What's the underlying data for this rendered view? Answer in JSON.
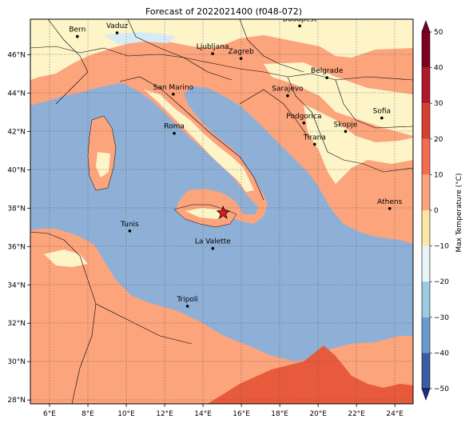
{
  "title": "Forecast of 2022021400 (f048-072)",
  "x_ticks": [
    "6°E",
    "8°E",
    "10°E",
    "12°E",
    "14°E",
    "16°E",
    "18°E",
    "20°E",
    "22°E",
    "24°E"
  ],
  "y_ticks": [
    "46°N",
    "44°N",
    "42°N",
    "40°N",
    "38°N",
    "36°N",
    "34°N",
    "32°N",
    "30°N",
    "28°N"
  ],
  "colorbar": {
    "label": "Max Temperature (°C)",
    "ticks": [
      "50",
      "40",
      "30",
      "20",
      "10",
      "0",
      "−10",
      "−20",
      "−30",
      "−40",
      "−50"
    ],
    "colors": [
      "#7f0020",
      "#b2182b",
      "#d6402e",
      "#f16d4e",
      "#fca47c",
      "#fde7a6",
      "#e8f4f8",
      "#9ecae1",
      "#6a9bd0",
      "#3b5ba5",
      "#1f2a8a"
    ]
  },
  "cities": [
    {
      "name": "Bern",
      "lon": 7.45,
      "lat": 46.95
    },
    {
      "name": "Vaduz",
      "lon": 9.52,
      "lat": 47.14
    },
    {
      "name": "Budapest",
      "lon": 19.04,
      "lat": 47.5
    },
    {
      "name": "Ljubljana",
      "lon": 14.5,
      "lat": 46.05
    },
    {
      "name": "Zagreb",
      "lon": 15.98,
      "lat": 45.8
    },
    {
      "name": "Belgrade",
      "lon": 20.46,
      "lat": 44.8
    },
    {
      "name": "San Marino",
      "lon": 12.45,
      "lat": 43.94
    },
    {
      "name": "Sarajevo",
      "lon": 18.41,
      "lat": 43.86
    },
    {
      "name": "Sofia",
      "lon": 23.32,
      "lat": 42.7
    },
    {
      "name": "Podgorica",
      "lon": 19.26,
      "lat": 42.44
    },
    {
      "name": "Skopje",
      "lon": 21.43,
      "lat": 42.0
    },
    {
      "name": "Roma",
      "lon": 12.5,
      "lat": 41.9
    },
    {
      "name": "Tirana",
      "lon": 19.82,
      "lat": 41.33
    },
    {
      "name": "Athens",
      "lon": 23.73,
      "lat": 37.98
    },
    {
      "name": "Tunis",
      "lon": 10.18,
      "lat": 36.81
    },
    {
      "name": "La Valette",
      "lon": 14.51,
      "lat": 35.9
    },
    {
      "name": "Tripoli",
      "lon": 13.19,
      "lat": 32.89
    }
  ],
  "marker": {
    "lon": 15.05,
    "lat": 37.75,
    "color": "#e31a1c"
  },
  "colors": {
    "sea": "#8fb0d6",
    "land_warm": "#fca47c",
    "land_mild": "#fdf4c8",
    "land_hot": "#f16d4e",
    "hot_core": "#e85a3c",
    "light_blue": "#d6ebf5"
  }
}
